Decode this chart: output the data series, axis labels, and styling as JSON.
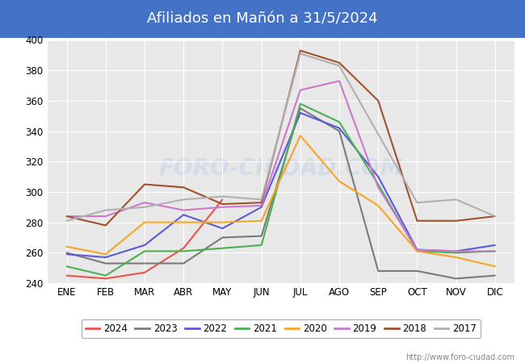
{
  "title": "Afiliados en Mañón a 31/5/2024",
  "x_labels": [
    "ENE",
    "FEB",
    "MAR",
    "ABR",
    "MAY",
    "JUN",
    "JUL",
    "AGO",
    "SEP",
    "OCT",
    "NOV",
    "DIC"
  ],
  "ylim": [
    240,
    400
  ],
  "yticks": [
    240,
    260,
    280,
    300,
    320,
    340,
    360,
    380,
    400
  ],
  "series": [
    {
      "label": "2024",
      "color": "#e8534a",
      "linewidth": 1.5,
      "data": [
        245,
        243,
        247,
        263,
        295,
        null,
        null,
        null,
        null,
        null,
        null,
        null
      ]
    },
    {
      "label": "2023",
      "color": "#7a7a7a",
      "linewidth": 1.5,
      "data": [
        260,
        253,
        253,
        253,
        270,
        271,
        355,
        340,
        248,
        248,
        243,
        245
      ]
    },
    {
      "label": "2022",
      "color": "#5a5adb",
      "linewidth": 1.5,
      "data": [
        259,
        257,
        265,
        285,
        276,
        290,
        352,
        342,
        310,
        262,
        261,
        265
      ]
    },
    {
      "label": "2021",
      "color": "#4caf50",
      "linewidth": 1.5,
      "data": [
        251,
        245,
        261,
        261,
        263,
        265,
        358,
        346,
        305,
        261,
        260,
        261
      ]
    },
    {
      "label": "2020",
      "color": "#f5a623",
      "linewidth": 1.5,
      "data": [
        264,
        259,
        280,
        280,
        280,
        281,
        337,
        307,
        291,
        261,
        257,
        251
      ]
    },
    {
      "label": "2019",
      "color": "#cc77cc",
      "linewidth": 1.5,
      "data": [
        284,
        284,
        293,
        288,
        290,
        291,
        367,
        373,
        303,
        262,
        261,
        261
      ]
    },
    {
      "label": "2018",
      "color": "#a0522d",
      "linewidth": 1.5,
      "data": [
        284,
        278,
        305,
        303,
        292,
        293,
        393,
        385,
        360,
        281,
        281,
        284
      ]
    },
    {
      "label": "2017",
      "color": "#b0b0b0",
      "linewidth": 1.5,
      "data": [
        281,
        288,
        290,
        295,
        297,
        295,
        391,
        383,
        null,
        293,
        295,
        284
      ]
    }
  ],
  "title_bg_color": "#4472c4",
  "title_color": "white",
  "title_fontsize": 13,
  "plot_bg_color": "#e8e8e8",
  "grid_color": "white",
  "footer_text": "http://www.foro-ciudad.com",
  "footer_color": "#888888",
  "footer_fontsize": 7,
  "legend_fontsize": 8.5,
  "tick_fontsize": 8.5,
  "watermark_text": "FORO-CIUDAD.COM",
  "watermark_color": "#c8d4e8",
  "watermark_alpha": 0.6,
  "watermark_fontsize": 20
}
